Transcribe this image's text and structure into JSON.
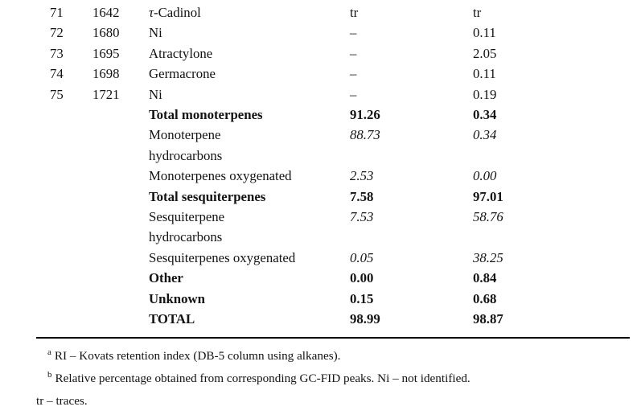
{
  "table": {
    "compound_rows": [
      {
        "no": "71",
        "ri": "1642",
        "name_it": "τ",
        "name": "-Cadinol",
        "a": "tr",
        "b": "tr"
      },
      {
        "no": "72",
        "ri": "1680",
        "name": "Ni",
        "a": "–",
        "b": "0.11"
      },
      {
        "no": "73",
        "ri": "1695",
        "name": "Atractylone",
        "a": "–",
        "b": "2.05"
      },
      {
        "no": "74",
        "ri": "1698",
        "name": "Germacrone",
        "a": "–",
        "b": "0.11"
      },
      {
        "no": "75",
        "ri": "1721",
        "name": "Ni",
        "a": "–",
        "b": "0.19"
      }
    ],
    "summary_rows": [
      {
        "name": "Total monoterpenes",
        "a": "91.26",
        "b": "0.34",
        "emphasis": "bold"
      },
      {
        "name": "Monoterpene",
        "name2": "hydrocarbons",
        "a": "88.73",
        "b": "0.34",
        "emphasis": "italic-values"
      },
      {
        "name": "Monoterpenes oxygenated",
        "a": "2.53",
        "b": "0.00",
        "emphasis": "italic-values"
      },
      {
        "name": "Total sesquiterpenes",
        "a": "7.58",
        "b": "97.01",
        "emphasis": "bold"
      },
      {
        "name": "Sesquiterpene",
        "name2": "hydrocarbons",
        "a": "7.53",
        "b": "58.76",
        "emphasis": "italic-values"
      },
      {
        "name": "Sesquiterpenes oxygenated",
        "a": "0.05",
        "b": "38.25",
        "emphasis": "italic-values"
      },
      {
        "name": "Other",
        "a": "0.00",
        "b": "0.84",
        "emphasis": "bold"
      },
      {
        "name": "Unknown",
        "a": "0.15",
        "b": "0.68",
        "emphasis": "bold"
      },
      {
        "name": "TOTAL",
        "a": "98.99",
        "b": "98.87",
        "emphasis": "bold"
      }
    ]
  },
  "footnotes": [
    {
      "marker": "a",
      "text": "RI – Kovats retention index (DB-5 column using alkanes)."
    },
    {
      "marker": "b",
      "text": "Relative percentage obtained from corresponding GC-FID peaks. Ni – not identified."
    },
    {
      "marker": "",
      "text": "tr – traces."
    }
  ],
  "colors": {
    "text": "#131313",
    "rule": "#000000",
    "background": "#ffffff"
  }
}
